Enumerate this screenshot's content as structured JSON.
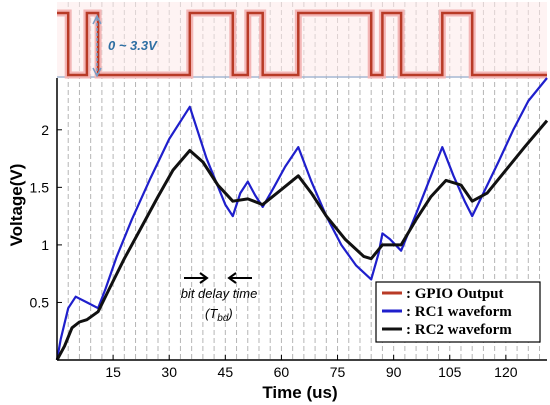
{
  "chart_data": {
    "type": "line",
    "xlabel": "Time (us)",
    "ylabel": "Voltage(V)",
    "xlim": [
      0,
      131
    ],
    "ylim": [
      0,
      2.45
    ],
    "xticks": [
      15,
      30,
      45,
      60,
      75,
      90,
      105,
      120
    ],
    "yticks": [
      0.5,
      1,
      1.5,
      2
    ],
    "grid": "vertical dashed lines",
    "legend_position": "lower-right",
    "gpio": {
      "name": ": GPIO Output",
      "color": "#b83a26",
      "range_label": "0 ~ 3.3V",
      "x": [
        0,
        3,
        3,
        8,
        8,
        11,
        11,
        35.5,
        35.5,
        47,
        47,
        51,
        51,
        55,
        55,
        64.5,
        64.5,
        84,
        84,
        87,
        87,
        92,
        92,
        103,
        103,
        111,
        111,
        131
      ],
      "level": [
        1,
        1,
        0,
        0,
        1,
        1,
        0,
        0,
        1,
        1,
        0,
        0,
        1,
        1,
        0,
        0,
        1,
        1,
        0,
        0,
        1,
        1,
        0,
        0,
        1,
        1,
        0,
        0
      ]
    },
    "series": [
      {
        "name": ": RC1 waveform",
        "color": "#1f1fcc",
        "x": [
          0,
          1,
          3,
          5,
          8,
          11,
          13,
          16,
          20,
          25,
          30,
          35.5,
          40,
          45,
          47,
          49,
          51,
          53,
          55,
          58,
          61,
          64.5,
          68,
          72,
          76,
          80,
          84,
          86,
          87,
          89,
          92,
          96,
          100,
          103,
          106,
          109,
          111,
          114,
          118,
          122,
          126,
          131
        ],
        "y": [
          0.0,
          0.18,
          0.45,
          0.55,
          0.5,
          0.45,
          0.62,
          0.9,
          1.22,
          1.58,
          1.92,
          2.2,
          1.75,
          1.35,
          1.25,
          1.45,
          1.55,
          1.43,
          1.33,
          1.5,
          1.68,
          1.85,
          1.55,
          1.25,
          1.0,
          0.82,
          0.7,
          0.93,
          1.1,
          1.05,
          0.95,
          1.27,
          1.6,
          1.85,
          1.6,
          1.38,
          1.25,
          1.45,
          1.72,
          2.0,
          2.25,
          2.45
        ]
      },
      {
        "name": ": RC2 waveform",
        "color": "#111111",
        "x": [
          0,
          2,
          4,
          6,
          8,
          11,
          14,
          18,
          22,
          27,
          31,
          35.5,
          39,
          43,
          47,
          51,
          55,
          60,
          64.5,
          68,
          72,
          77,
          82,
          84,
          87,
          92,
          96,
          100,
          104,
          108,
          111,
          115,
          120,
          125,
          131
        ],
        "y": [
          0.0,
          0.12,
          0.28,
          0.33,
          0.35,
          0.42,
          0.62,
          0.88,
          1.12,
          1.42,
          1.65,
          1.82,
          1.72,
          1.52,
          1.38,
          1.4,
          1.35,
          1.48,
          1.6,
          1.45,
          1.25,
          1.05,
          0.9,
          0.88,
          1.0,
          1.0,
          1.22,
          1.42,
          1.56,
          1.52,
          1.38,
          1.45,
          1.65,
          1.85,
          2.08
        ]
      }
    ],
    "annotation": {
      "text": "bit delay time",
      "sub_main": "(T",
      "sub_script": "bd",
      "sub_close": ")"
    }
  }
}
